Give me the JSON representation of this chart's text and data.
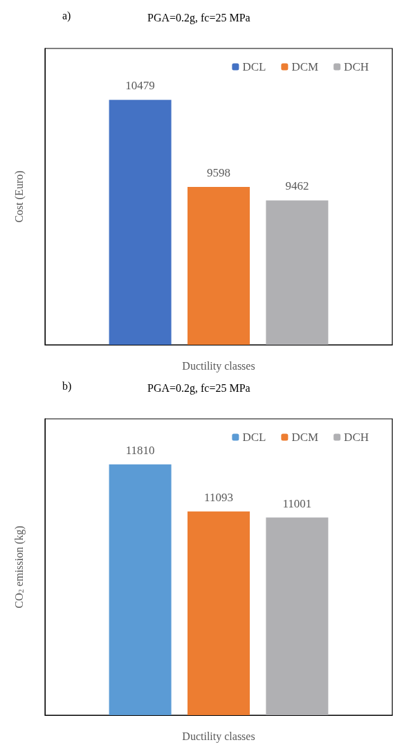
{
  "chart_data": [
    {
      "type": "bar",
      "title": "PGA=0.2g, fc=25 MPa",
      "annotations": [
        "a)"
      ],
      "xlabel": "Ductility classes",
      "ylabel": "Cost (Euro)",
      "categories": [
        null
      ],
      "ylim": [
        8000,
        11000
      ],
      "data_labels": true,
      "legend": "top right",
      "series": [
        {
          "name": "DCL",
          "color": "#4472c4",
          "values": [
            10479
          ]
        },
        {
          "name": "DCM",
          "color": "#ed7d31",
          "values": [
            9598
          ]
        },
        {
          "name": "DCH",
          "color": "#b0b0b3",
          "values": [
            9462
          ]
        }
      ]
    },
    {
      "type": "bar",
      "title": "PGA=0.2g, fc=25 MPa",
      "annotations": [
        "b)"
      ],
      "xlabel": "Ductility classes",
      "ylabel": "CO$_{2}$ emission (kg)",
      "categories": [
        null
      ],
      "ylim": [
        8000,
        12500
      ],
      "data_labels": true,
      "legend": "top right",
      "series": [
        {
          "name": "DCL",
          "color": "#5b9bd5",
          "values": [
            11810
          ]
        },
        {
          "name": "DCM",
          "color": "#ed7d31",
          "values": [
            11093
          ]
        },
        {
          "name": "DCH",
          "color": "#b0b0b3",
          "values": [
            11001
          ]
        }
      ]
    }
  ]
}
